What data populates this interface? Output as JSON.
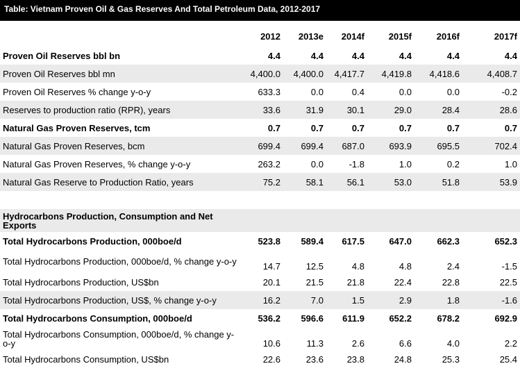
{
  "title": "Table: Vietnam Proven Oil & Gas Reserves And Total Petroleum Data, 2012-2017",
  "columns": [
    "2012",
    "2013e",
    "2014f",
    "2015f",
    "2016f",
    "2017f"
  ],
  "reserves": [
    {
      "label": "Proven Oil Reserves bbl bn",
      "values": [
        "4.4",
        "4.4",
        "4.4",
        "4.4",
        "4.4",
        "4.4"
      ]
    },
    {
      "label": "Proven Oil Reserves bbl mn",
      "values": [
        "4,400.0",
        "4,400.0",
        "4,417.7",
        "4,419.8",
        "4,418.6",
        "4,408.7"
      ]
    },
    {
      "label": "Proven Oil Reserves % change y-o-y",
      "values": [
        "633.3",
        "0.0",
        "0.4",
        "0.0",
        "0.0",
        "-0.2"
      ]
    },
    {
      "label": "Reserves to production ratio (RPR), years",
      "values": [
        "33.6",
        "31.9",
        "30.1",
        "29.0",
        "28.4",
        "28.6"
      ]
    },
    {
      "label": "Natural Gas Proven Reserves, tcm",
      "values": [
        "0.7",
        "0.7",
        "0.7",
        "0.7",
        "0.7",
        "0.7"
      ]
    },
    {
      "label": "Natural Gas Proven Reserves, bcm",
      "values": [
        "699.4",
        "699.4",
        "687.0",
        "693.9",
        "695.5",
        "702.4"
      ]
    },
    {
      "label": "Natural Gas Proven Reserves, % change y-o-y",
      "values": [
        "263.2",
        "0.0",
        "-1.8",
        "1.0",
        "0.2",
        "1.0"
      ]
    },
    {
      "label": "Natural Gas Reserve to Production Ratio, years",
      "values": [
        "75.2",
        "58.1",
        "56.1",
        "53.0",
        "51.8",
        "53.9"
      ]
    }
  ],
  "section_heading": "Hydrocarbons Production, Consumption and Net Exports",
  "hydrocarbons": [
    {
      "label": "Total Hydrocarbons Production, 000boe/d",
      "values": [
        "523.8",
        "589.4",
        "617.5",
        "647.0",
        "662.3",
        "652.3"
      ]
    },
    {
      "label": "Total Hydrocarbons Production, 000boe/d, % change y-o-y",
      "values": [
        "14.7",
        "12.5",
        "4.8",
        "4.8",
        "2.4",
        "-1.5"
      ]
    },
    {
      "label": "Total Hydrocarbons Production, US$bn",
      "values": [
        "20.1",
        "21.5",
        "21.8",
        "22.4",
        "22.8",
        "22.5"
      ]
    },
    {
      "label": "Total Hydrocarbons Production, US$, % change y-o-y",
      "values": [
        "16.2",
        "7.0",
        "1.5",
        "2.9",
        "1.8",
        "-1.6"
      ]
    },
    {
      "label": "Total Hydrocarbons Consumption, 000boe/d",
      "values": [
        "536.2",
        "596.6",
        "611.9",
        "652.2",
        "678.2",
        "692.9"
      ]
    },
    {
      "label": "Total Hydrocarbons Consumption, 000boe/d, % change y-o-y",
      "values": [
        "10.6",
        "11.3",
        "2.6",
        "6.6",
        "4.0",
        "2.2"
      ]
    },
    {
      "label": "Total Hydrocarbons Consumption, US$bn",
      "values": [
        "22.6",
        "23.6",
        "23.8",
        "24.8",
        "25.3",
        "25.4"
      ]
    }
  ]
}
